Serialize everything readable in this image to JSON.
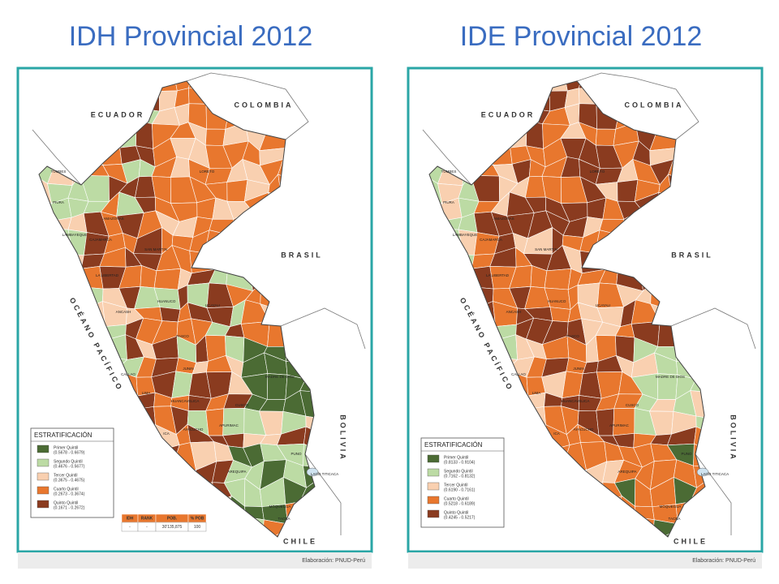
{
  "panels": [
    {
      "title": "IDH Provincial 2012",
      "labels": [
        "ECUADOR",
        "COLOMBIA",
        "BRASIL",
        "OCÉANO PACÍFICO",
        "BOLIVIA",
        "CHILE",
        "LAGO TITICACA",
        "LORETO",
        "TUMBES",
        "PIURA",
        "AMAZONAS",
        "LAMBAYEQUE",
        "CAJAMARCA",
        "SAN MARTIN",
        "LA LIBERTAD",
        "ANCASH",
        "HUANUCO",
        "UCAYALI",
        "PASCO",
        "CALLAO",
        "JUNIN",
        "LIMA",
        "HUANCAVELICA",
        "AYACUCHO",
        "APURIMAC",
        "CUSCO",
        "MADRE DE DIOS",
        "AREQUIPA",
        "PUNO",
        "MOQUEGUA",
        "TACNA",
        "ICA"
      ],
      "legend": {
        "title": "ESTRATIFICACIÓN",
        "items": [
          {
            "name": "Primer Quintil",
            "range": "(0.5678 - 0.6679)",
            "color": "#4b6b34"
          },
          {
            "name": "Segundo Quintil",
            "range": "(0.4676 - 0.5677)",
            "color": "#bcdba4"
          },
          {
            "name": "Tercer Quintil",
            "range": "(0.3675 - 0.4675)",
            "color": "#f9d0b0"
          },
          {
            "name": "Cuarto Quintil",
            "range": "(0.2673 - 0.3674)",
            "color": "#e8772e"
          },
          {
            "name": "Quinto Quintil",
            "range": "(0.1671 - 0.2672)",
            "color": "#8a3b1f"
          }
        ]
      },
      "table": {
        "headers": [
          "IDH",
          "RANK",
          "POB.",
          "% POB"
        ],
        "row": [
          "-",
          "-",
          "30'135,875",
          "100"
        ]
      },
      "credit": "Elaboración: PNUD-Perú"
    },
    {
      "title": "IDE Provincial 2012",
      "labels": [
        "ECUADOR",
        "COLOMBIA",
        "BRASIL",
        "OCÉANO PACÍFICO",
        "BOLIVIA",
        "CHILE",
        "LAGO TITICACA",
        "LORETO",
        "TUMBES",
        "PIURA",
        "AMAZONAS",
        "LAMBAYEQUE",
        "CAJAMARCA",
        "SAN MARTIN",
        "LA LIBERTAD",
        "ANCASH",
        "HUANUCO",
        "UCAYALI",
        "PASCO",
        "CALLAO",
        "JUNIN",
        "LIMA",
        "HUANCAVELICA",
        "AYACUCHO",
        "APURIMAC",
        "CUSCO",
        "MADRE DE DIOS",
        "AREQUIPA",
        "PUNO",
        "MOQUEGUA",
        "TACNA",
        "ICA"
      ],
      "legend": {
        "title": "ESTRATIFICACIÓN",
        "items": [
          {
            "name": "Primer Quintil",
            "range": "(0.8133 - 0.9104)",
            "color": "#4b6b34"
          },
          {
            "name": "Segundo Quintil",
            "range": "(0.7162 - 0.8132)",
            "color": "#bcdba4"
          },
          {
            "name": "Tercer Quintil",
            "range": "(0.6190 - 0.7161)",
            "color": "#f9d0b0"
          },
          {
            "name": "Cuarto Quintil",
            "range": "(0.5218 - 0.6189)",
            "color": "#e8772e"
          },
          {
            "name": "Quinto Quintil",
            "range": "(0.4245 - 0.5217)",
            "color": "#8a3b1f"
          }
        ]
      },
      "credit": "Elaboración: PNUD-Perú"
    }
  ]
}
